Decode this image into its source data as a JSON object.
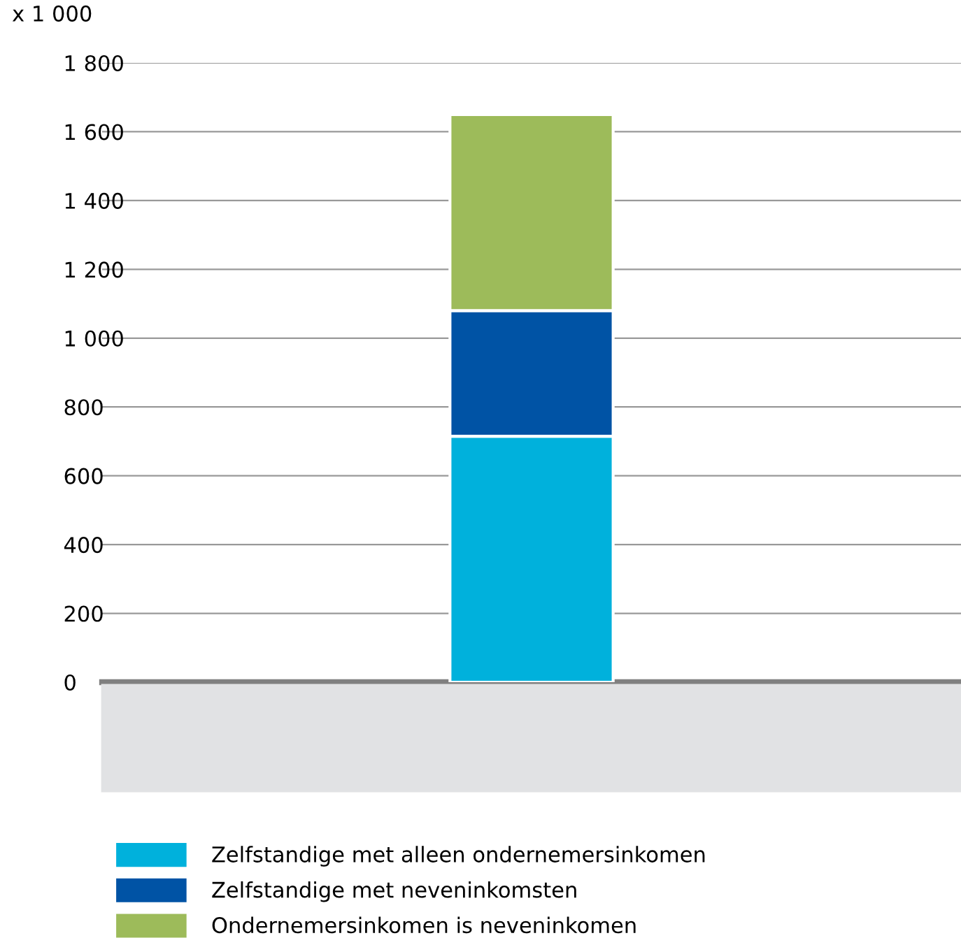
{
  "chart_data": {
    "type": "bar",
    "stacked": true,
    "categories": [
      null
    ],
    "series": [
      {
        "name": "Zelfstandige met alleen ondernemersinkomen",
        "color": "#00b1dc",
        "values": [
          715
        ]
      },
      {
        "name": "Zelfstandige met neveninkomsten",
        "color": "#0053a5",
        "values": [
          365
        ]
      },
      {
        "name": "Ondernemersinkomen is neveninkomen",
        "color": "#9dbb5a",
        "values": [
          570
        ]
      }
    ],
    "ylabel": "x 1 000",
    "ylim": [
      0,
      1800
    ],
    "yticks": [
      0,
      200,
      400,
      600,
      800,
      {
        "value": 1000,
        "label": "1 000"
      },
      {
        "value": 1200,
        "label": "1 200"
      },
      {
        "value": 1400,
        "label": "1 400"
      },
      {
        "value": 1600,
        "label": "1 600"
      },
      {
        "value": 1800,
        "label": "1 800"
      }
    ],
    "grid": "y",
    "legend": "bottom"
  }
}
